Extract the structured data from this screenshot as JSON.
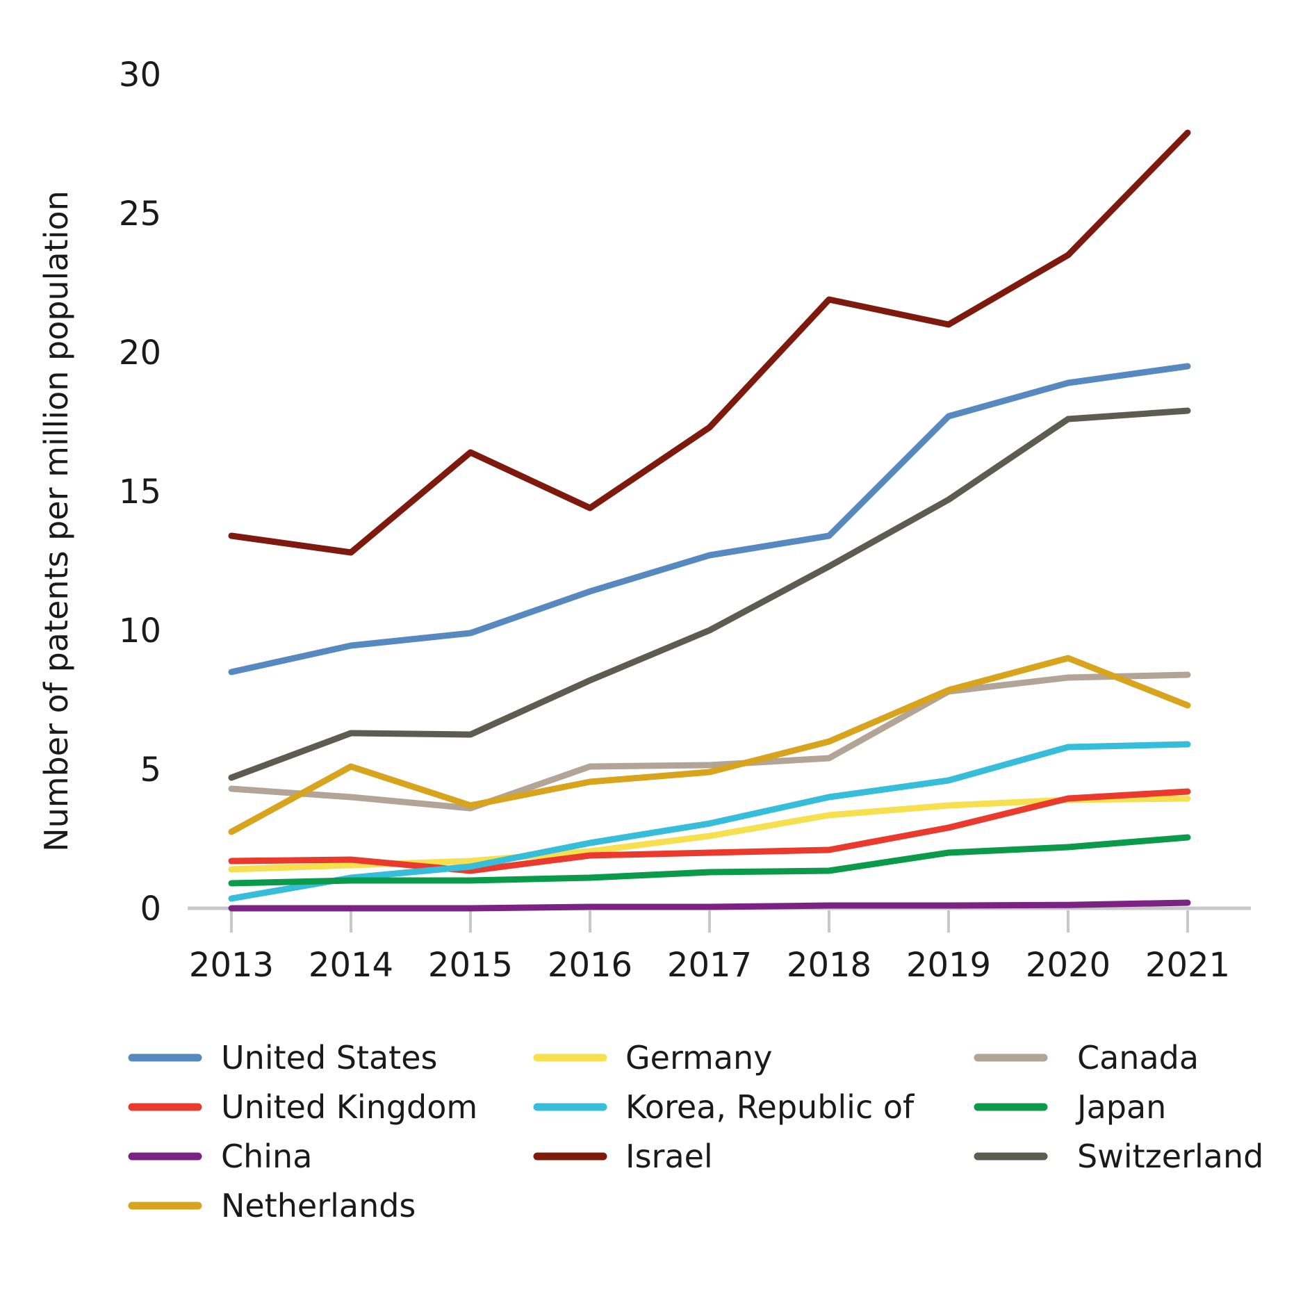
{
  "chart_data": {
    "type": "line",
    "title": "",
    "ylabel": "Number of patents per million population",
    "xlabel": "",
    "x": [
      2013,
      2014,
      2015,
      2016,
      2017,
      2018,
      2019,
      2020,
      2021
    ],
    "yticks": [
      0,
      5,
      10,
      15,
      20,
      25,
      30
    ],
    "ylim": [
      0,
      30
    ],
    "grid": false,
    "legend_position": "bottom",
    "axis_color": "#c8c8c8",
    "text_color": "#1a1a1a",
    "series": [
      {
        "name": "United States",
        "color": "#5789c1",
        "values": [
          8.5,
          9.45,
          9.9,
          11.4,
          12.7,
          13.4,
          17.7,
          18.9,
          19.5
        ]
      },
      {
        "name": "Germany",
        "color": "#f6e04f",
        "values": [
          1.4,
          1.55,
          1.7,
          2.05,
          2.6,
          3.35,
          3.7,
          3.9,
          3.95
        ]
      },
      {
        "name": "Canada",
        "color": "#b2a496",
        "values": [
          4.3,
          4.0,
          3.6,
          5.1,
          5.15,
          5.4,
          7.8,
          8.3,
          8.4
        ]
      },
      {
        "name": "United Kingdom",
        "color": "#e93a2d",
        "values": [
          1.7,
          1.75,
          1.35,
          1.9,
          2.0,
          2.1,
          2.9,
          3.95,
          4.2
        ]
      },
      {
        "name": "Korea, Republic of",
        "color": "#36bdd9",
        "values": [
          0.35,
          1.1,
          1.5,
          2.35,
          3.05,
          4.0,
          4.6,
          5.8,
          5.9
        ]
      },
      {
        "name": "Japan",
        "color": "#0a9a4a",
        "values": [
          0.9,
          1.0,
          1.0,
          1.1,
          1.3,
          1.35,
          2.0,
          2.2,
          2.55
        ]
      },
      {
        "name": "China",
        "color": "#7b2383",
        "values": [
          0.0,
          0.0,
          0.0,
          0.05,
          0.05,
          0.1,
          0.1,
          0.12,
          0.2
        ]
      },
      {
        "name": "Israel",
        "color": "#7e190e",
        "values": [
          13.4,
          12.8,
          16.4,
          14.4,
          17.3,
          21.9,
          21.0,
          23.5,
          27.9
        ]
      },
      {
        "name": "Switzerland",
        "color": "#5d5c51",
        "values": [
          4.7,
          6.3,
          6.25,
          8.2,
          10.0,
          12.3,
          14.7,
          17.6,
          17.9
        ]
      },
      {
        "name": "Netherlands",
        "color": "#d8a31d",
        "values": [
          2.75,
          5.1,
          3.7,
          4.55,
          4.9,
          6.0,
          7.85,
          9.0,
          7.3
        ]
      }
    ],
    "legend_columns": [
      [
        "United States",
        "United Kingdom",
        "China",
        "Netherlands"
      ],
      [
        "Germany",
        "Korea, Republic of",
        "Israel"
      ],
      [
        "Canada",
        "Japan",
        "Switzerland"
      ]
    ]
  }
}
